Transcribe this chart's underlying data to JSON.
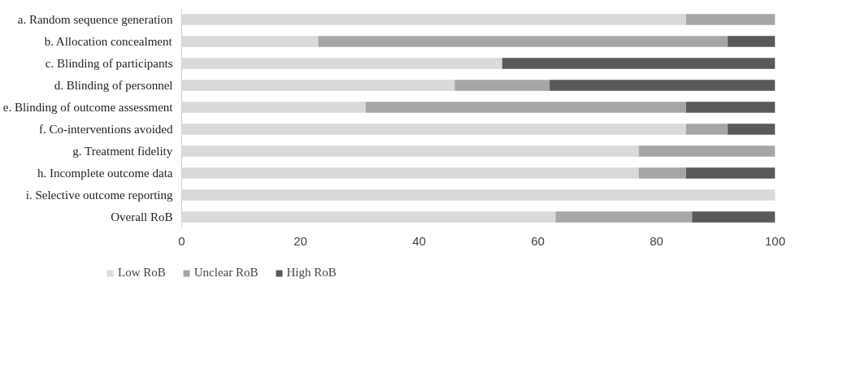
{
  "chart_data": {
    "type": "bar",
    "orientation": "horizontal",
    "stacked": true,
    "categories": [
      "a. Random sequence generation",
      "b. Allocation concealment",
      "c. Blinding of participants",
      "d. Blinding of personnel",
      "e. Blinding of outcome assessment",
      "f. Co-interventions avoided",
      "g. Treatment fidelity",
      "h. Incomplete outcome data",
      "i. Selective outcome reporting",
      "Overall RoB"
    ],
    "series": [
      {
        "name": "Low RoB",
        "color": "#d9d9d9",
        "values": [
          85,
          23,
          54,
          46,
          31,
          85,
          77,
          77,
          100,
          63
        ]
      },
      {
        "name": "Unclear RoB",
        "color": "#a6a6a6",
        "values": [
          15,
          69,
          0,
          16,
          54,
          7,
          23,
          8,
          0,
          23
        ]
      },
      {
        "name": "High RoB",
        "color": "#595959",
        "values": [
          0,
          8,
          46,
          38,
          15,
          8,
          0,
          15,
          0,
          14
        ]
      }
    ],
    "xlim": [
      0,
      100
    ],
    "xticks": [
      0,
      20,
      40,
      60,
      80,
      100
    ],
    "grid": false,
    "legend": "bottom"
  }
}
